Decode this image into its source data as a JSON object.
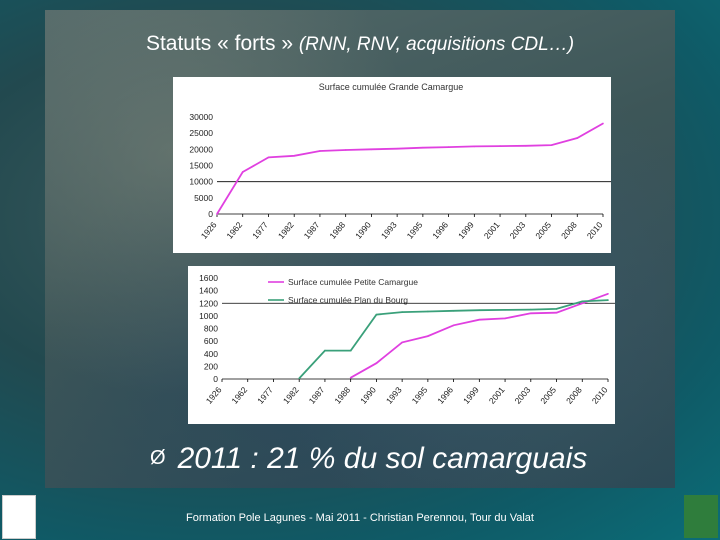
{
  "slide": {
    "title_main": "Statuts « forts » ",
    "title_italic": "(RNN, RNV, acquisitions CDL…)",
    "bullet_marker": "Ø",
    "bullet_text": "2011 : 21 % du sol camarguais",
    "footer": "Formation Pole Lagunes - Mai 2011  -  Christian Perennou, Tour du Valat"
  },
  "chart_data": [
    {
      "type": "line",
      "title": "Surface cumulée Grande Camargue",
      "x_ticks": [
        "1926",
        "1962",
        "1977",
        "1982",
        "1987",
        "1988",
        "1990",
        "1993",
        "1995",
        "1996",
        "1999",
        "2001",
        "2003",
        "2005",
        "2008",
        "2010"
      ],
      "y_ticks": [
        "30000",
        "25000",
        "20000",
        "15000",
        "10000",
        "5000",
        "0"
      ],
      "ylim": [
        0,
        30000
      ],
      "series": [
        {
          "color": "#e040e0",
          "values": [
            0,
            13000,
            17500,
            18000,
            19500,
            19800,
            20000,
            20200,
            20500,
            20700,
            20900,
            21000,
            21100,
            21300,
            23500,
            28000
          ]
        }
      ]
    },
    {
      "type": "line",
      "x_ticks": [
        "1926",
        "1962",
        "1977",
        "1982",
        "1987",
        "1988",
        "1990",
        "1993",
        "1995",
        "1996",
        "1999",
        "2001",
        "2003",
        "2005",
        "2008",
        "2010"
      ],
      "y_ticks": [
        "1600",
        "1400",
        "1200",
        "1000",
        "800",
        "600",
        "400",
        "200",
        "0"
      ],
      "ylim": [
        0,
        1600
      ],
      "legend": "top-left",
      "series": [
        {
          "name": "Surface cumulée Petite Camargue",
          "color": "#e040e0",
          "values": [
            null,
            null,
            null,
            null,
            null,
            20,
            250,
            580,
            680,
            850,
            940,
            960,
            1040,
            1050,
            1200,
            1350
          ]
        },
        {
          "name": "Surface cumulée Plan du Bourg",
          "color": "#3aa07a",
          "values": [
            null,
            null,
            null,
            10,
            450,
            450,
            1020,
            1060,
            1070,
            1080,
            1090,
            1095,
            1100,
            1110,
            1230,
            1250
          ]
        }
      ]
    }
  ]
}
